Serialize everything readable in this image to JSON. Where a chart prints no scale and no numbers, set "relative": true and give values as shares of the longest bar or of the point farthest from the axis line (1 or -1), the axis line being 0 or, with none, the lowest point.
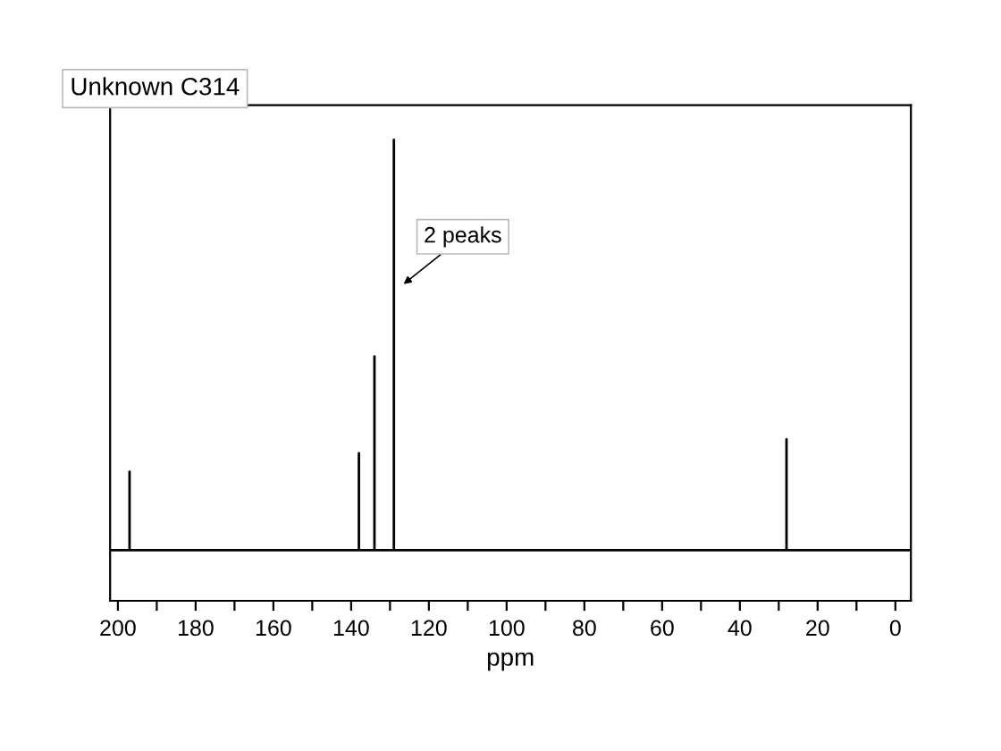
{
  "chart_data": {
    "type": "line",
    "title": "Unknown C314",
    "xlabel": "ppm",
    "relative": true,
    "tick_labels": "x",
    "x": [
      202,
      197,
      197,
      197,
      138,
      138,
      138,
      134,
      134,
      134,
      129,
      129,
      129,
      28,
      28,
      28,
      -4
    ],
    "series": [
      {
        "color": "#000000",
        "values": [
          0.11,
          0.11,
          0.28,
          0.11,
          0.11,
          0.32,
          0.11,
          0.11,
          0.53,
          0.11,
          0.11,
          1,
          0.11,
          0.11,
          0.35,
          0.11,
          0.11
        ]
      }
    ],
    "xlim": [
      202,
      -4
    ],
    "xticks": [
      200,
      {
        "value": 190,
        "label": null
      },
      180,
      {
        "value": 170,
        "label": null
      },
      160,
      {
        "value": 150,
        "label": null
      },
      140,
      {
        "value": 130,
        "label": null
      },
      120,
      {
        "value": 110,
        "label": null
      },
      100,
      {
        "value": 90,
        "label": null
      },
      80,
      {
        "value": 70,
        "label": null
      },
      60,
      {
        "value": 50,
        "label": null
      },
      40,
      {
        "value": 30,
        "label": null
      },
      20,
      {
        "value": 10,
        "label": null
      },
      0
    ],
    "annotations": [
      {
        "text": "2 peaks",
        "x": 129,
        "y": 0.67
      }
    ]
  }
}
